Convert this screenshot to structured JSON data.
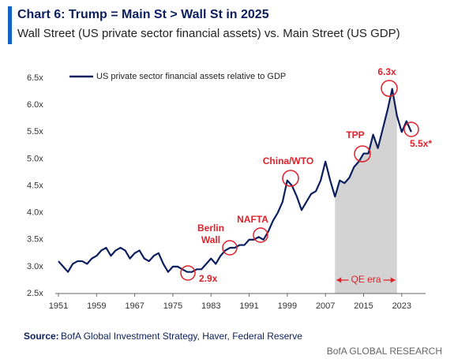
{
  "chart_data": {
    "type": "line",
    "title": "Chart 6: Trump = Main St > Wall St in 2025",
    "subtitle": "Wall Street (US private sector financial assets) vs. Main Street (US GDP)",
    "x": [
      1951,
      1952,
      1953,
      1954,
      1955,
      1956,
      1957,
      1958,
      1959,
      1960,
      1961,
      1962,
      1963,
      1964,
      1965,
      1966,
      1967,
      1968,
      1969,
      1970,
      1971,
      1972,
      1973,
      1974,
      1975,
      1976,
      1977,
      1978,
      1979,
      1980,
      1981,
      1982,
      1983,
      1984,
      1985,
      1986,
      1987,
      1988,
      1989,
      1990,
      1991,
      1992,
      1993,
      1994,
      1995,
      1996,
      1997,
      1998,
      1999,
      2000,
      2001,
      2002,
      2003,
      2004,
      2005,
      2006,
      2007,
      2008,
      2009,
      2010,
      2011,
      2012,
      2013,
      2014,
      2015,
      2016,
      2017,
      2018,
      2019,
      2020,
      2021,
      2022,
      2023,
      2024,
      2025
    ],
    "series": [
      {
        "name": "US private sector financial assets relative to GDP",
        "color": "#0b1f5e",
        "values": [
          3.1,
          3.0,
          2.9,
          3.05,
          3.1,
          3.1,
          3.05,
          3.15,
          3.2,
          3.3,
          3.35,
          3.2,
          3.3,
          3.35,
          3.3,
          3.15,
          3.25,
          3.3,
          3.15,
          3.1,
          3.2,
          3.25,
          3.05,
          2.9,
          3.0,
          3.0,
          2.95,
          2.9,
          2.9,
          2.95,
          2.95,
          3.05,
          3.15,
          3.05,
          3.2,
          3.3,
          3.35,
          3.35,
          3.4,
          3.4,
          3.5,
          3.5,
          3.55,
          3.5,
          3.65,
          3.85,
          4.0,
          4.2,
          4.6,
          4.5,
          4.3,
          4.05,
          4.2,
          4.35,
          4.4,
          4.6,
          4.95,
          4.6,
          4.3,
          4.6,
          4.55,
          4.65,
          4.85,
          4.95,
          5.1,
          5.1,
          5.45,
          5.2,
          5.55,
          5.9,
          6.3,
          5.8,
          5.5,
          5.7,
          5.5
        ]
      }
    ],
    "xlim": [
      1951,
      2028
    ],
    "xticks": [
      1951,
      1959,
      1967,
      1975,
      1983,
      1991,
      1999,
      2007,
      2015,
      2023
    ],
    "ylim": [
      2.5,
      6.5
    ],
    "yticks": [
      {
        "value": 2.5,
        "label": "2.5x"
      },
      {
        "value": 3.0,
        "label": "3.0x"
      },
      {
        "value": 3.5,
        "label": "3.5x"
      },
      {
        "value": 4.0,
        "label": "4.0x"
      },
      {
        "value": 4.5,
        "label": "4.5x"
      },
      {
        "value": 5.0,
        "label": "5.0x"
      },
      {
        "value": 5.5,
        "label": "5.5x"
      },
      {
        "value": 6.0,
        "label": "6.0x"
      },
      {
        "value": 6.5,
        "label": "6.5x"
      }
    ],
    "shaded_span": {
      "label": "QE era",
      "range": [
        2009,
        2022
      ],
      "color": "#d3d3d3"
    },
    "annotations": [
      {
        "lines": [
          "2.9x"
        ]
      },
      {
        "lines": [
          "Berlin",
          "Wall"
        ]
      },
      {
        "lines": [
          "NAFTA"
        ]
      },
      {
        "lines": [
          "China/WTO"
        ]
      },
      {
        "lines": [
          "TPP"
        ]
      },
      {
        "lines": [
          "6.3x"
        ]
      },
      {
        "lines": [
          "5.5x*"
        ]
      }
    ],
    "annotation_color": "#e0202a",
    "legend": "upper left"
  },
  "source_label": "Source:",
  "source": "BofA Global Investment Strategy, Haver, Federal Reserve",
  "footer": "BofA GLOBAL RESEARCH"
}
